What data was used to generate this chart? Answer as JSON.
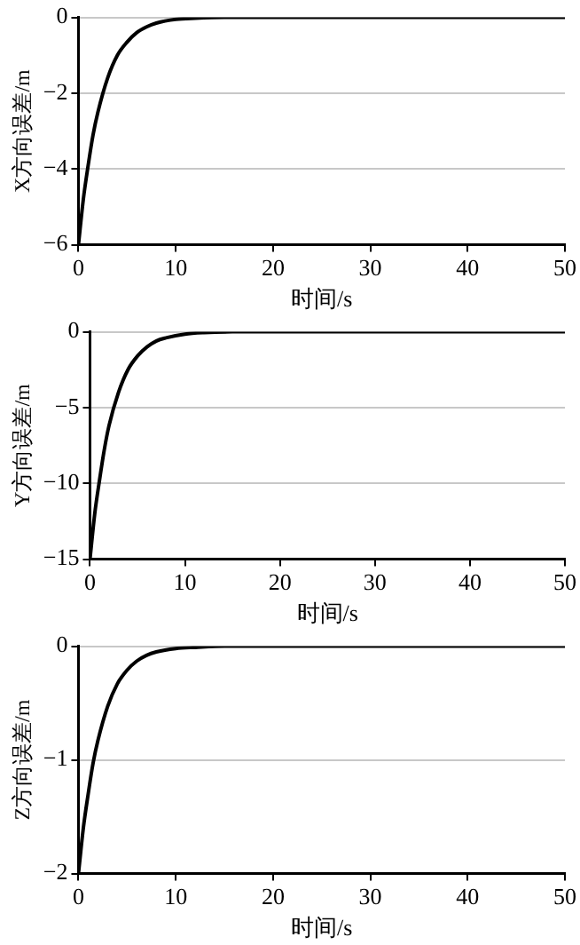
{
  "chart_data": [
    {
      "type": "line",
      "xlabel": "时间/s",
      "ylabel": "X方向误差/m",
      "x": [
        0,
        0.5,
        1,
        1.5,
        2,
        3,
        4,
        5,
        6,
        7,
        8,
        10,
        12,
        15,
        20,
        30,
        40,
        50
      ],
      "xlim": [
        0,
        50
      ],
      "xticks": [
        0,
        10,
        20,
        30,
        40,
        50
      ],
      "ylim": [
        -6,
        0
      ],
      "yticks": [
        -6,
        -4,
        -2,
        0
      ],
      "grid": "y",
      "marker": "none",
      "series": [
        {
          "color": "#000000",
          "values": [
            -6,
            -4.8,
            -3.9,
            -3.1,
            -2.5,
            -1.6,
            -1.0,
            -0.65,
            -0.4,
            -0.25,
            -0.15,
            -0.05,
            -0.02,
            0,
            0,
            0,
            0,
            0
          ]
        }
      ]
    },
    {
      "type": "line",
      "xlabel": "时间/s",
      "ylabel": "Y方向误差/m",
      "x": [
        0,
        0.5,
        1,
        1.5,
        2,
        3,
        4,
        5,
        6,
        7,
        8,
        10,
        12,
        15,
        20,
        30,
        40,
        50
      ],
      "xlim": [
        0,
        50
      ],
      "xticks": [
        0,
        10,
        20,
        30,
        40,
        50
      ],
      "ylim": [
        -15,
        0
      ],
      "yticks": [
        -15,
        -10,
        -5,
        0
      ],
      "grid": "y",
      "marker": "none",
      "series": [
        {
          "color": "#000000",
          "values": [
            -15,
            -12,
            -9.8,
            -7.8,
            -6.2,
            -4,
            -2.5,
            -1.6,
            -1,
            -0.6,
            -0.4,
            -0.15,
            -0.05,
            0,
            0,
            0,
            0,
            0
          ]
        }
      ]
    },
    {
      "type": "line",
      "xlabel": "时间/s",
      "ylabel": "Z方向误差/m",
      "x": [
        0,
        0.5,
        1,
        1.5,
        2,
        3,
        4,
        5,
        6,
        7,
        8,
        10,
        12,
        15,
        20,
        30,
        40,
        50
      ],
      "xlim": [
        0,
        50
      ],
      "xticks": [
        0,
        10,
        20,
        30,
        40,
        50
      ],
      "ylim": [
        -2,
        0
      ],
      "yticks": [
        -2,
        -1,
        0
      ],
      "grid": "y",
      "marker": "none",
      "series": [
        {
          "color": "#000000",
          "values": [
            -2,
            -1.6,
            -1.3,
            -1.03,
            -0.83,
            -0.53,
            -0.33,
            -0.21,
            -0.13,
            -0.08,
            -0.05,
            -0.02,
            -0.01,
            0,
            0,
            0,
            0,
            0
          ]
        }
      ]
    }
  ]
}
